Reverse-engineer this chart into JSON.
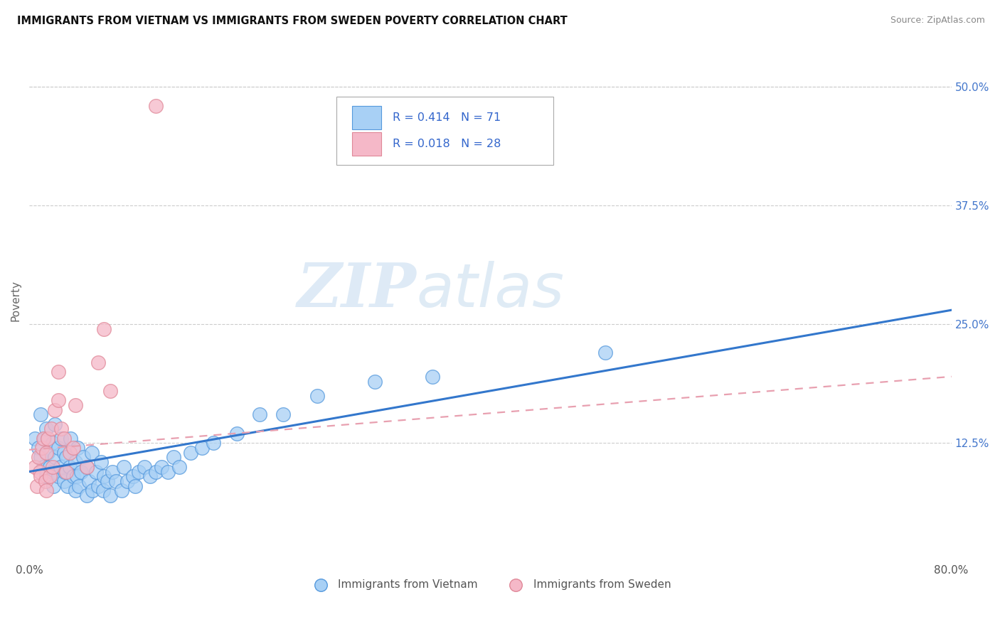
{
  "title": "IMMIGRANTS FROM VIETNAM VS IMMIGRANTS FROM SWEDEN POVERTY CORRELATION CHART",
  "source": "Source: ZipAtlas.com",
  "ylabel": "Poverty",
  "xlim": [
    0.0,
    0.8
  ],
  "ylim": [
    0.0,
    0.55
  ],
  "xticks": [
    0.0,
    0.2,
    0.4,
    0.6,
    0.8
  ],
  "xticklabels": [
    "0.0%",
    "",
    "",
    "",
    "80.0%"
  ],
  "yticks_right": [
    0.0,
    0.125,
    0.25,
    0.375,
    0.5
  ],
  "ytick_labels_right": [
    "",
    "12.5%",
    "25.0%",
    "37.5%",
    "50.0%"
  ],
  "watermark_zip": "ZIP",
  "watermark_atlas": "atlas",
  "legend_r1": "R = 0.414",
  "legend_n1": "N = 71",
  "legend_r2": "R = 0.018",
  "legend_n2": "N = 28",
  "color_vietnam_fill": "#a8d0f5",
  "color_vietnam_edge": "#5599dd",
  "color_sweden_fill": "#f5b8c8",
  "color_sweden_edge": "#e08898",
  "color_line_vietnam": "#3377cc",
  "color_line_sweden": "#e8a0b0",
  "vietnam_x": [
    0.005,
    0.008,
    0.01,
    0.01,
    0.012,
    0.013,
    0.015,
    0.015,
    0.016,
    0.018,
    0.02,
    0.02,
    0.021,
    0.022,
    0.022,
    0.025,
    0.025,
    0.027,
    0.028,
    0.03,
    0.03,
    0.031,
    0.032,
    0.033,
    0.035,
    0.036,
    0.038,
    0.04,
    0.04,
    0.041,
    0.042,
    0.043,
    0.045,
    0.047,
    0.05,
    0.05,
    0.052,
    0.054,
    0.055,
    0.058,
    0.06,
    0.062,
    0.064,
    0.065,
    0.068,
    0.07,
    0.072,
    0.075,
    0.08,
    0.082,
    0.085,
    0.09,
    0.092,
    0.095,
    0.1,
    0.105,
    0.11,
    0.115,
    0.12,
    0.125,
    0.13,
    0.14,
    0.15,
    0.16,
    0.18,
    0.2,
    0.22,
    0.25,
    0.3,
    0.35,
    0.5
  ],
  "vietnam_y": [
    0.13,
    0.12,
    0.11,
    0.155,
    0.1,
    0.13,
    0.09,
    0.14,
    0.115,
    0.1,
    0.095,
    0.125,
    0.08,
    0.11,
    0.145,
    0.09,
    0.12,
    0.1,
    0.13,
    0.085,
    0.115,
    0.095,
    0.11,
    0.08,
    0.1,
    0.13,
    0.09,
    0.075,
    0.105,
    0.09,
    0.12,
    0.08,
    0.095,
    0.11,
    0.07,
    0.1,
    0.085,
    0.115,
    0.075,
    0.095,
    0.08,
    0.105,
    0.075,
    0.09,
    0.085,
    0.07,
    0.095,
    0.085,
    0.075,
    0.1,
    0.085,
    0.09,
    0.08,
    0.095,
    0.1,
    0.09,
    0.095,
    0.1,
    0.095,
    0.11,
    0.1,
    0.115,
    0.12,
    0.125,
    0.135,
    0.155,
    0.155,
    0.175,
    0.19,
    0.195,
    0.22
  ],
  "sweden_x": [
    0.005,
    0.007,
    0.008,
    0.009,
    0.01,
    0.011,
    0.012,
    0.014,
    0.015,
    0.015,
    0.016,
    0.018,
    0.019,
    0.02,
    0.022,
    0.025,
    0.025,
    0.028,
    0.03,
    0.032,
    0.035,
    0.038,
    0.04,
    0.05,
    0.06,
    0.065,
    0.07,
    0.11
  ],
  "sweden_y": [
    0.1,
    0.08,
    0.11,
    0.095,
    0.09,
    0.12,
    0.13,
    0.085,
    0.075,
    0.115,
    0.13,
    0.09,
    0.14,
    0.1,
    0.16,
    0.17,
    0.2,
    0.14,
    0.13,
    0.095,
    0.115,
    0.12,
    0.165,
    0.1,
    0.21,
    0.245,
    0.18,
    0.48
  ],
  "vietnam_line_x0": 0.0,
  "vietnam_line_x1": 0.8,
  "vietnam_line_y0": 0.095,
  "vietnam_line_y1": 0.265,
  "sweden_line_x0": 0.0,
  "sweden_line_x1": 0.8,
  "sweden_line_y0": 0.118,
  "sweden_line_y1": 0.195
}
